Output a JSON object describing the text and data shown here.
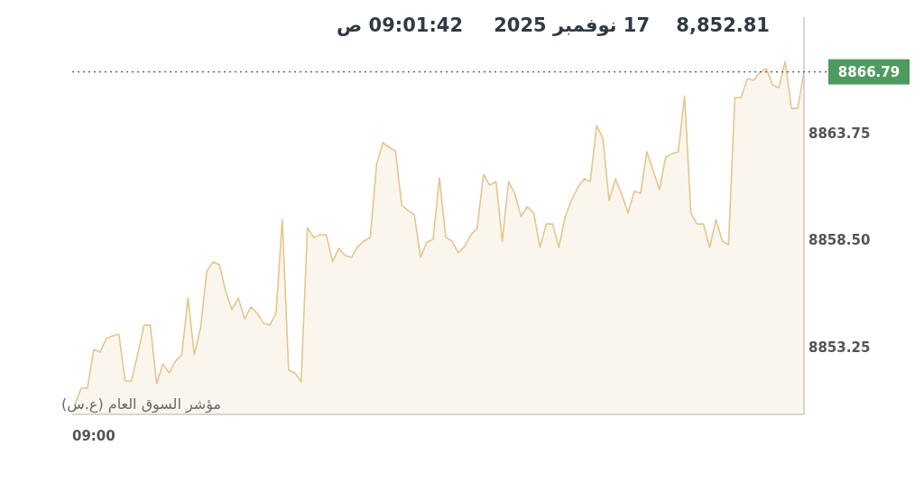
{
  "chart_data": {
    "type": "area",
    "annotations": [
      "8,852.81",
      "17 نوفمبر 2025",
      "09:01:42 ص",
      "مؤشر السوق العام (ع.س)",
      "09:00"
    ],
    "categories": [
      null,
      null,
      null,
      null,
      null,
      null,
      null,
      null,
      null,
      null,
      null,
      null,
      null,
      null,
      null,
      null,
      null,
      null,
      null,
      null,
      null,
      null,
      null,
      null,
      null,
      null,
      null,
      null,
      null,
      null,
      null,
      null,
      null,
      null,
      null,
      null,
      null,
      null,
      null,
      null,
      null,
      null,
      null,
      null,
      null,
      null,
      null,
      null,
      null,
      null,
      null,
      null,
      null,
      null,
      null,
      null,
      null,
      null,
      null,
      null,
      null,
      null,
      null,
      null,
      null,
      null,
      null,
      null,
      null,
      null,
      null,
      null,
      null,
      null,
      null,
      null,
      null,
      null,
      null,
      null,
      null,
      null,
      null,
      null,
      null,
      null,
      null,
      null,
      null,
      null,
      null,
      null,
      null,
      null,
      null,
      null,
      null,
      null,
      null,
      null,
      null,
      null,
      null,
      null,
      null,
      null,
      null,
      null,
      null,
      null,
      null,
      null,
      null,
      null,
      null,
      null,
      null
    ],
    "ylim": [
      8849.95,
      8869.48
    ],
    "yticks": [
      {
        "value": 8853.25,
        "label": "8853.25"
      },
      {
        "value": 8858.5,
        "label": "8858.50"
      },
      {
        "value": 8863.75,
        "label": "8863.75"
      }
    ],
    "ref_lines": [
      {
        "axis": "y",
        "value": 8866.79,
        "label": "8866.79",
        "color": "#555555",
        "line_style": "dotted"
      }
    ],
    "series": [
      {
        "color": "#e5c58f",
        "values": [
          8850.44,
          8851.24,
          8851.24,
          8853.14,
          8853.01,
          8853.68,
          8853.81,
          8853.9,
          8851.59,
          8851.59,
          8852.92,
          8854.34,
          8854.34,
          8851.46,
          8852.43,
          8851.99,
          8852.57,
          8852.88,
          8855.67,
          8852.88,
          8854.21,
          8857.0,
          8857.45,
          8857.31,
          8855.98,
          8855.1,
          8855.67,
          8854.65,
          8855.23,
          8854.92,
          8854.43,
          8854.34,
          8854.92,
          8859.53,
          8852.12,
          8851.99,
          8851.55,
          8859.13,
          8858.65,
          8858.78,
          8858.78,
          8857.45,
          8858.11,
          8857.76,
          8857.67,
          8858.2,
          8858.47,
          8858.65,
          8862.24,
          8863.31,
          8863.08,
          8862.91,
          8860.24,
          8859.98,
          8859.76,
          8857.67,
          8858.42,
          8858.56,
          8861.58,
          8858.65,
          8858.47,
          8857.89,
          8858.2,
          8858.78,
          8859.09,
          8861.75,
          8861.22,
          8861.4,
          8858.47,
          8861.4,
          8860.78,
          8859.67,
          8860.16,
          8859.85,
          8858.16,
          8859.31,
          8859.31,
          8858.16,
          8859.67,
          8860.47,
          8861.09,
          8861.53,
          8861.4,
          8864.15,
          8863.53,
          8860.47,
          8861.53,
          8860.78,
          8859.85,
          8860.91,
          8860.82,
          8862.86,
          8861.93,
          8861.0,
          8862.6,
          8862.77,
          8862.86,
          8865.61,
          8859.85,
          8859.31,
          8859.31,
          8858.16,
          8859.53,
          8858.47,
          8858.29,
          8865.53,
          8865.53,
          8866.46,
          8866.37,
          8866.77,
          8866.95,
          8866.15,
          8866.01,
          8867.3,
          8864.99,
          8864.99,
          8866.79
        ]
      }
    ]
  }
}
